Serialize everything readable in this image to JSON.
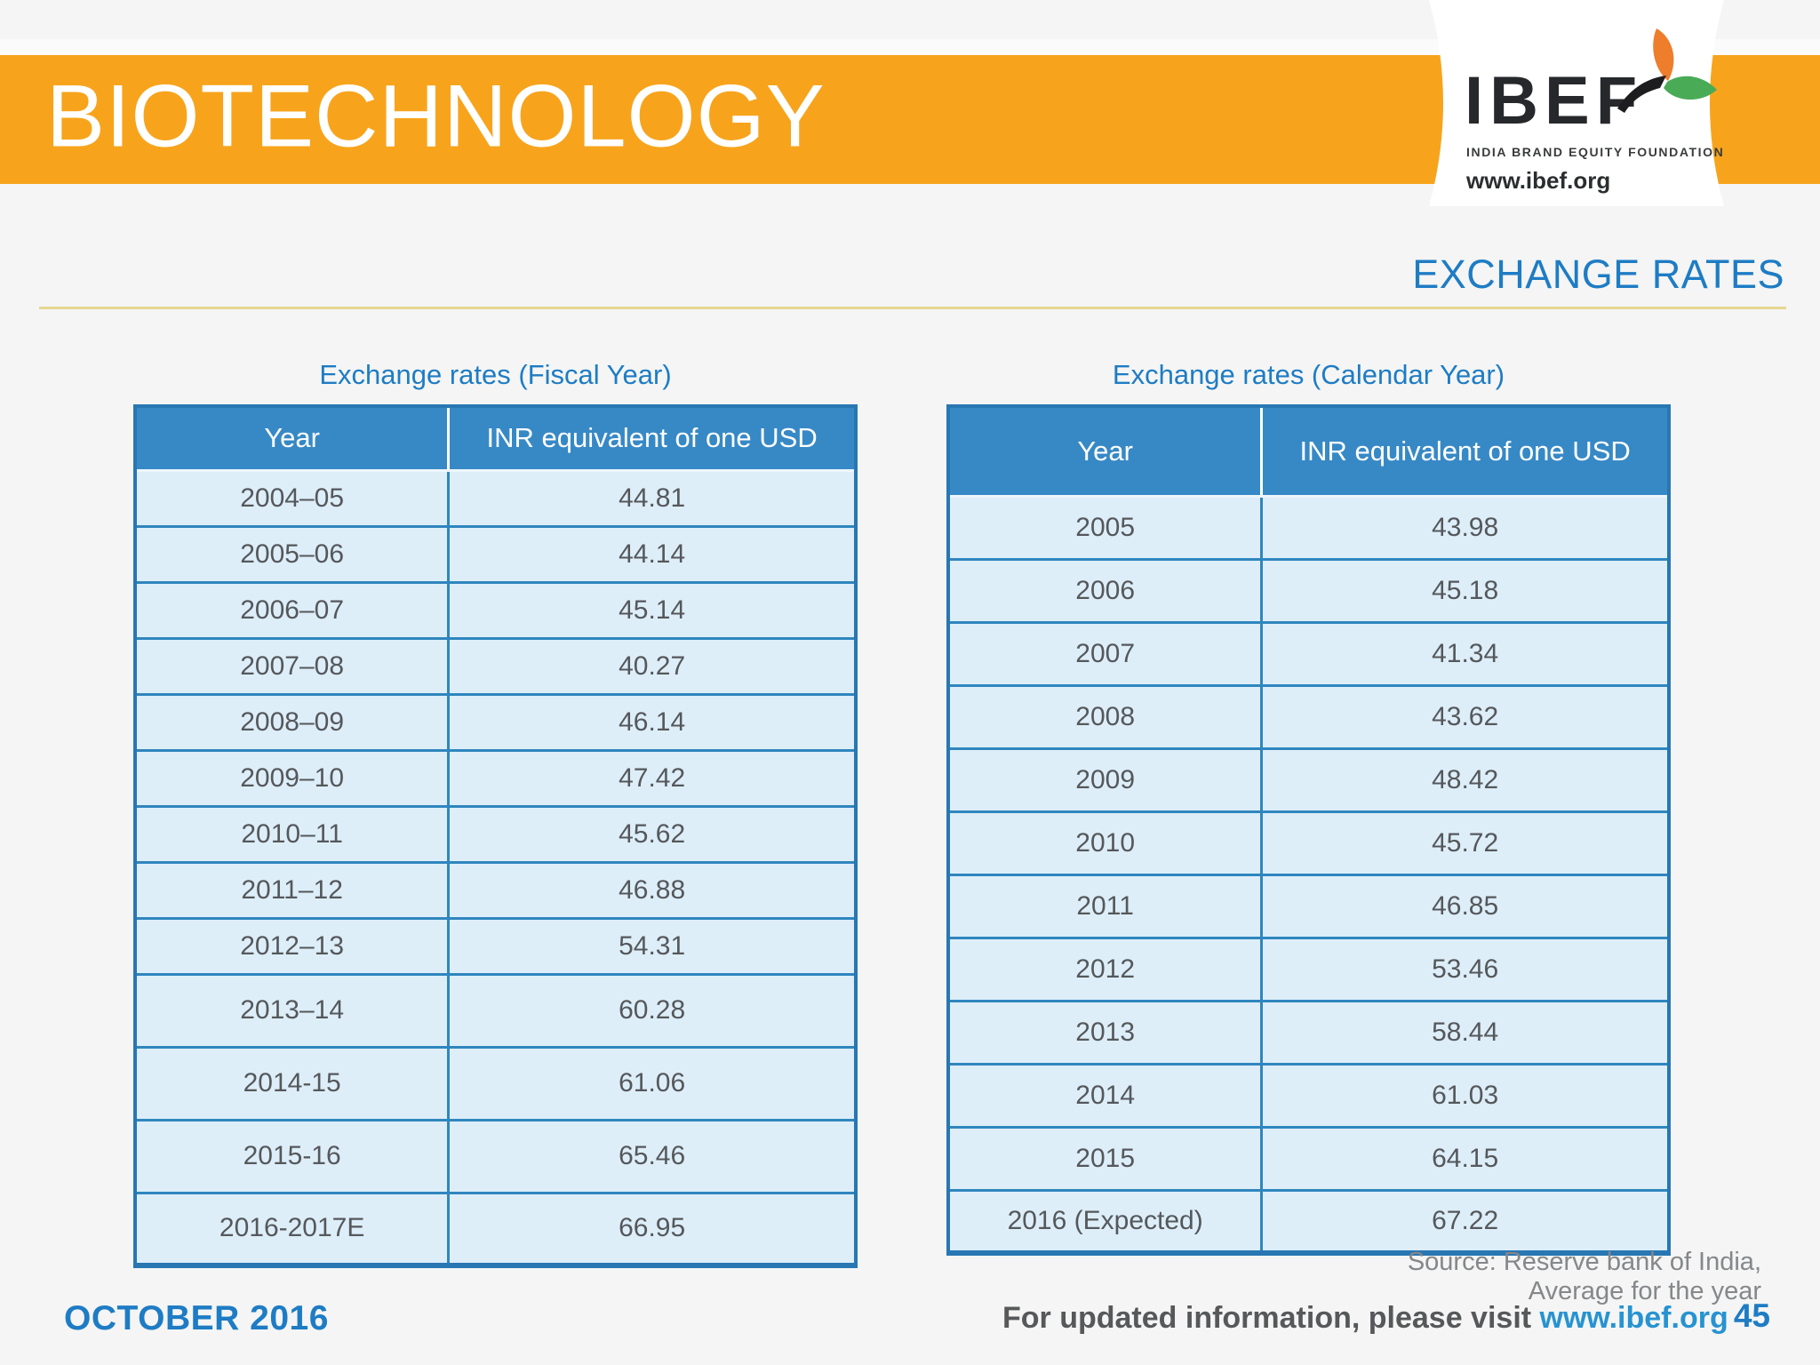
{
  "header": {
    "title": "BIOTECHNOLOGY"
  },
  "logo": {
    "name": "IBEF",
    "tagline": "INDIA BRAND EQUITY FOUNDATION",
    "url": "www.ibef.org"
  },
  "section": {
    "title": "EXCHANGE RATES"
  },
  "colors": {
    "banner_orange": "#f7a41c",
    "table_header_blue": "#3789c6",
    "table_cell_blue": "#ddeef9",
    "table_border_blue": "#2f86be",
    "accent_text_blue": "#1e7cc4",
    "link_blue": "#2793d1",
    "rule_tan": "#e6d892",
    "cell_text_gray": "#55585b"
  },
  "tables": [
    {
      "title": "Exchange rates (Fiscal Year)",
      "columns": [
        "Year",
        "INR equivalent of one USD"
      ],
      "rows": [
        [
          "2004–05",
          "44.81"
        ],
        [
          "2005–06",
          "44.14"
        ],
        [
          "2006–07",
          "45.14"
        ],
        [
          "2007–08",
          "40.27"
        ],
        [
          "2008–09",
          "46.14"
        ],
        [
          "2009–10",
          "47.42"
        ],
        [
          "2010–11",
          "45.62"
        ],
        [
          "2011–12",
          "46.88"
        ],
        [
          "2012–13",
          "54.31"
        ],
        [
          "2013–14",
          "60.28"
        ],
        [
          "2014-15",
          "61.06"
        ],
        [
          "2015-16",
          "65.46"
        ],
        [
          "2016-2017E",
          "66.95"
        ]
      ]
    },
    {
      "title": "Exchange rates (Calendar Year)",
      "columns": [
        "Year",
        "INR equivalent of one USD"
      ],
      "rows": [
        [
          "2005",
          "43.98"
        ],
        [
          "2006",
          "45.18"
        ],
        [
          "2007",
          "41.34"
        ],
        [
          "2008",
          "43.62"
        ],
        [
          "2009",
          "48.42"
        ],
        [
          "2010",
          "45.72"
        ],
        [
          "2011",
          "46.85"
        ],
        [
          "2012",
          "53.46"
        ],
        [
          "2013",
          "58.44"
        ],
        [
          "2014",
          "61.03"
        ],
        [
          "2015",
          "64.15"
        ],
        [
          "2016 (Expected)",
          "67.22"
        ]
      ]
    }
  ],
  "chart_data": [
    {
      "type": "table",
      "title": "Exchange rates (Fiscal Year)",
      "columns": [
        "Year",
        "INR equivalent of one USD"
      ],
      "categories": [
        "2004–05",
        "2005–06",
        "2006–07",
        "2007–08",
        "2008–09",
        "2009–10",
        "2010–11",
        "2011–12",
        "2012–13",
        "2013–14",
        "2014-15",
        "2015-16",
        "2016-2017E"
      ],
      "values": [
        44.81,
        44.14,
        45.14,
        40.27,
        46.14,
        47.42,
        45.62,
        46.88,
        54.31,
        60.28,
        61.06,
        65.46,
        66.95
      ]
    },
    {
      "type": "table",
      "title": "Exchange rates (Calendar Year)",
      "columns": [
        "Year",
        "INR equivalent of one USD"
      ],
      "categories": [
        "2005",
        "2006",
        "2007",
        "2008",
        "2009",
        "2010",
        "2011",
        "2012",
        "2013",
        "2014",
        "2015",
        "2016 (Expected)"
      ],
      "values": [
        43.98,
        45.18,
        41.34,
        43.62,
        48.42,
        45.72,
        46.85,
        53.46,
        58.44,
        61.03,
        64.15,
        67.22
      ]
    }
  ],
  "footer": {
    "source_line1": "Source: Reserve bank of India,",
    "source_line2": "Average for the year",
    "date": "OCTOBER 2016",
    "info_text": "For updated information, please visit ",
    "info_link": "www.ibef.org",
    "page_number": "45"
  }
}
